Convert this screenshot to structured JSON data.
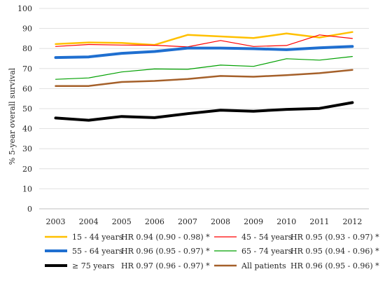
{
  "chart_data": {
    "type": "line",
    "ylabel": "% 5-year overall survival",
    "xlabel": "",
    "ylim": [
      0,
      100
    ],
    "yticks": [
      0,
      10,
      20,
      30,
      40,
      50,
      60,
      70,
      80,
      90,
      100
    ],
    "grid": "horizontal",
    "legend_placement": "bottom",
    "x": [
      "2003",
      "2004",
      "2005",
      "2006",
      "2007",
      "2008",
      "2009",
      "2010",
      "2011",
      "2012"
    ],
    "series": [
      {
        "name": "15 - 44 years",
        "hr": "HR 0.94 (0.90 - 0.98) *",
        "color": "#FFC000",
        "weight": "medium",
        "values": [
          82.2,
          83.0,
          82.8,
          81.8,
          86.8,
          86.0,
          85.2,
          87.5,
          85.5,
          88.2
        ]
      },
      {
        "name": "45 - 54 years",
        "hr": "HR 0.95 (0.93 - 0.97) *",
        "color": "#FF0000",
        "weight": "thin",
        "values": [
          81.0,
          82.0,
          81.7,
          81.6,
          80.8,
          84.0,
          81.0,
          81.5,
          86.8,
          85.0
        ]
      },
      {
        "name": "55 - 64 years",
        "hr": "HR 0.96 (0.95 - 0.97) *",
        "color": "#1F6FD0",
        "weight": "thick",
        "values": [
          75.5,
          75.8,
          77.6,
          78.5,
          80.2,
          80.2,
          79.9,
          79.4,
          80.3,
          81.0
        ]
      },
      {
        "name": "65 - 74 years",
        "hr": "HR 0.95 (0.94 - 0.96) *",
        "color": "#00A000",
        "weight": "thin",
        "values": [
          64.6,
          65.3,
          68.3,
          69.8,
          69.6,
          71.7,
          71.1,
          74.9,
          74.2,
          76.0
        ]
      },
      {
        "name": "≥ 75 years",
        "hr": "HR 0.97 (0.96 - 0.97) *",
        "color": "#000000",
        "weight": "thick",
        "values": [
          45.3,
          44.2,
          46.1,
          45.5,
          47.5,
          49.2,
          48.7,
          49.6,
          50.1,
          53.0
        ]
      },
      {
        "name": "All patients",
        "hr": "HR 0.96 (0.95 - 0.96) *",
        "color": "#A5602A",
        "weight": "medium",
        "values": [
          61.3,
          61.3,
          63.3,
          63.8,
          64.8,
          66.3,
          65.9,
          66.7,
          67.7,
          69.3
        ]
      }
    ]
  }
}
